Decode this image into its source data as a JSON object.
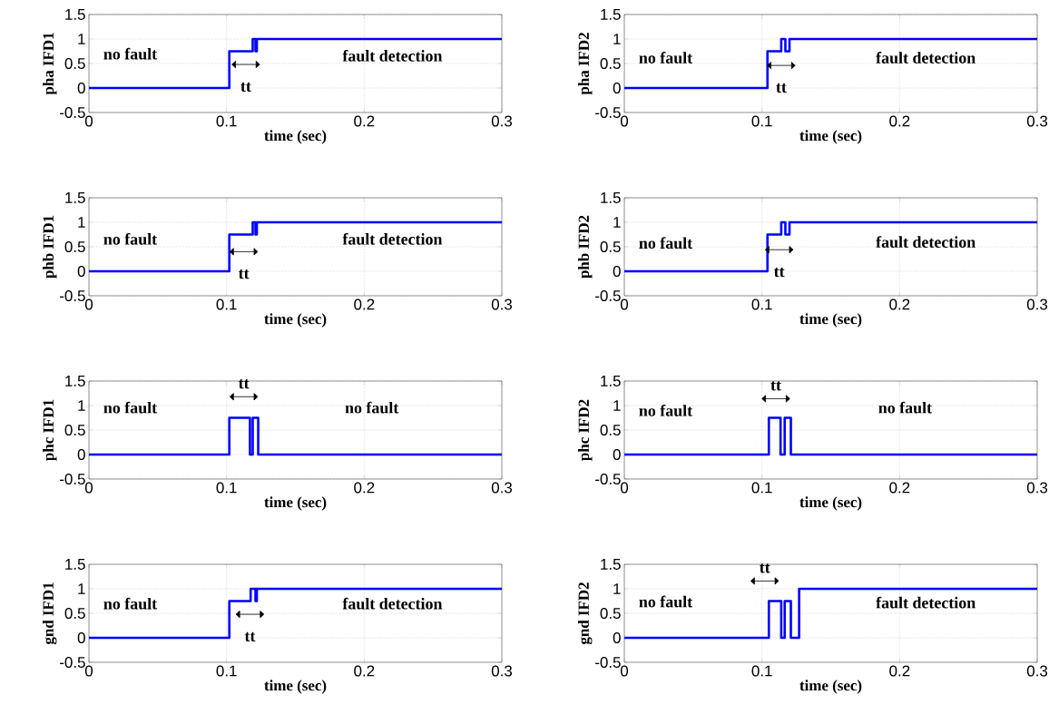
{
  "chart_data": [
    {
      "type": "step",
      "xlabel": "time (sec)",
      "ylabel": "pha IFD1",
      "color": "#0000ff",
      "x": [
        0,
        0.102,
        0.119,
        0.121,
        0.122,
        0.3
      ],
      "values": [
        0,
        0.75,
        1,
        0.75,
        1,
        1
      ],
      "xlim": [
        0,
        0.3
      ],
      "ylim": [
        -0.5,
        1.5
      ],
      "xticks": [
        0,
        0.1,
        0.2,
        0.3
      ],
      "yticks": [
        -0.5,
        0,
        0.5,
        1,
        1.5
      ],
      "grid": true,
      "annotations": [
        "no fault",
        "fault detection",
        "tt"
      ]
    },
    {
      "type": "step",
      "xlabel": "time (sec)",
      "ylabel": "pha IFD2",
      "color": "#0000ff",
      "x": [
        0,
        0.104,
        0.114,
        0.117,
        0.12,
        0.3
      ],
      "values": [
        0,
        0.75,
        1,
        0.75,
        1,
        1
      ],
      "xlim": [
        0,
        0.3
      ],
      "ylim": [
        -0.5,
        1.5
      ],
      "xticks": [
        0,
        0.1,
        0.2,
        0.3
      ],
      "yticks": [
        -0.5,
        0,
        0.5,
        1,
        1.5
      ],
      "grid": true,
      "annotations": [
        "no fault",
        "fault detection",
        "tt"
      ]
    },
    {
      "type": "step",
      "xlabel": "time (sec)",
      "ylabel": "phb IFD1",
      "color": "#0000ff",
      "x": [
        0,
        0.102,
        0.119,
        0.121,
        0.122,
        0.3
      ],
      "values": [
        0,
        0.75,
        1,
        0.75,
        1,
        1
      ],
      "xlim": [
        0,
        0.3
      ],
      "ylim": [
        -0.5,
        1.5
      ],
      "xticks": [
        0,
        0.1,
        0.2,
        0.3
      ],
      "yticks": [
        -0.5,
        0,
        0.5,
        1,
        1.5
      ],
      "grid": true,
      "annotations": [
        "no fault",
        "fault detection",
        "tt"
      ]
    },
    {
      "type": "step",
      "xlabel": "time (sec)",
      "ylabel": "phb IFD2",
      "color": "#0000ff",
      "x": [
        0,
        0.104,
        0.114,
        0.117,
        0.12,
        0.3
      ],
      "values": [
        0,
        0.75,
        1,
        0.75,
        1,
        1
      ],
      "xlim": [
        0,
        0.3
      ],
      "ylim": [
        -0.5,
        1.5
      ],
      "xticks": [
        0,
        0.1,
        0.2,
        0.3
      ],
      "yticks": [
        -0.5,
        0,
        0.5,
        1,
        1.5
      ],
      "grid": true,
      "annotations": [
        "no fault",
        "fault detection",
        "tt"
      ]
    },
    {
      "type": "step",
      "xlabel": "time (sec)",
      "ylabel": "phc IFD1",
      "color": "#0000ff",
      "x": [
        0,
        0.102,
        0.117,
        0.119,
        0.123,
        0.3
      ],
      "values": [
        0,
        0.75,
        0,
        0.75,
        0,
        0
      ],
      "xlim": [
        0,
        0.3
      ],
      "ylim": [
        -0.5,
        1.5
      ],
      "xticks": [
        0,
        0.1,
        0.2,
        0.3
      ],
      "yticks": [
        -0.5,
        0,
        0.5,
        1,
        1.5
      ],
      "grid": true,
      "annotations": [
        "no fault",
        "no fault",
        "tt"
      ]
    },
    {
      "type": "step",
      "xlabel": "time (sec)",
      "ylabel": "phc IFD2",
      "color": "#0000ff",
      "x": [
        0,
        0.105,
        0.1135,
        0.1165,
        0.121,
        0.3
      ],
      "values": [
        0,
        0.75,
        0,
        0.75,
        0,
        0
      ],
      "xlim": [
        0,
        0.3
      ],
      "ylim": [
        -0.5,
        1.5
      ],
      "xticks": [
        0,
        0.1,
        0.2,
        0.3
      ],
      "yticks": [
        -0.5,
        0,
        0.5,
        1,
        1.5
      ],
      "grid": true,
      "annotations": [
        "no fault",
        "no fault",
        "tt"
      ]
    },
    {
      "type": "step",
      "xlabel": "time (sec)",
      "ylabel": "gnd IFD1",
      "color": "#0000ff",
      "x": [
        0,
        0.102,
        0.1175,
        0.121,
        0.122,
        0.3
      ],
      "values": [
        0,
        0.75,
        1,
        0.75,
        1,
        1
      ],
      "xlim": [
        0,
        0.3
      ],
      "ylim": [
        -0.5,
        1.5
      ],
      "xticks": [
        0,
        0.1,
        0.2,
        0.3
      ],
      "yticks": [
        -0.5,
        0,
        0.5,
        1,
        1.5
      ],
      "grid": true,
      "annotations": [
        "no fault",
        "fault detection",
        "tt"
      ]
    },
    {
      "type": "step",
      "xlabel": "time (sec)",
      "ylabel": "gnd IFD2",
      "color": "#0000ff",
      "x": [
        0,
        0.105,
        0.114,
        0.1165,
        0.121,
        0.127,
        0.3
      ],
      "values": [
        0,
        0.75,
        0,
        0.75,
        0,
        1,
        1
      ],
      "xlim": [
        0,
        0.3
      ],
      "ylim": [
        -0.5,
        1.5
      ],
      "xticks": [
        0,
        0.1,
        0.2,
        0.3
      ],
      "yticks": [
        -0.5,
        0,
        0.5,
        1,
        1.5
      ],
      "grid": true,
      "annotations": [
        "no fault",
        "fault detection",
        "tt"
      ]
    }
  ]
}
